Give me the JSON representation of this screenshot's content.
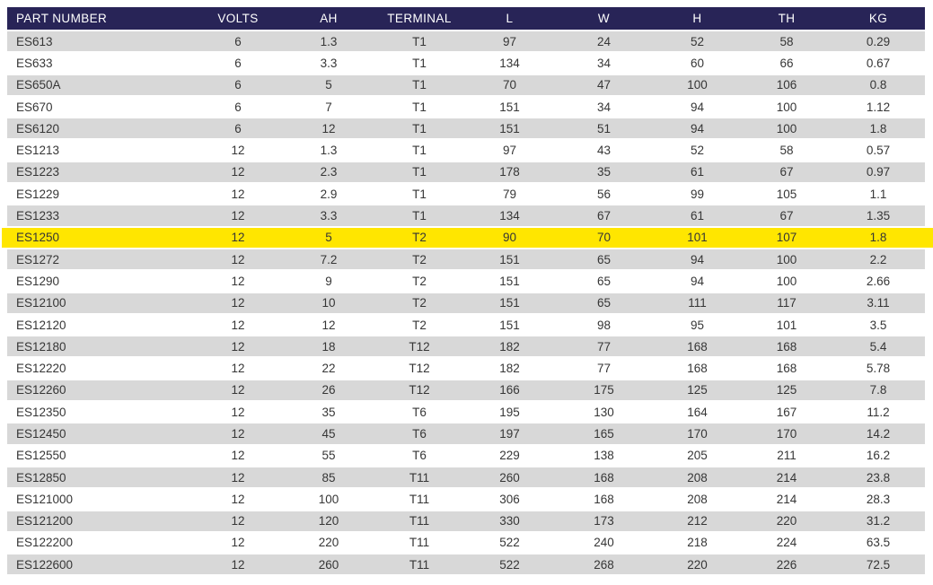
{
  "colors": {
    "header_bg": "#282457",
    "header_text": "#ffffff",
    "stripe": "#d8d8d8",
    "highlight": "#ffe600",
    "body_text": "#363636"
  },
  "table": {
    "columns": [
      "PART NUMBER",
      "VOLTS",
      "AH",
      "TERMINAL",
      "L",
      "W",
      "H",
      "TH",
      "KG"
    ],
    "column_keys": [
      "part-number",
      "volts",
      "ah",
      "terminal",
      "l",
      "w",
      "h",
      "th",
      "kg"
    ],
    "highlighted_part": "ES1250",
    "rows": [
      [
        "ES613",
        "6",
        "1.3",
        "T1",
        "97",
        "24",
        "52",
        "58",
        "0.29"
      ],
      [
        "ES633",
        "6",
        "3.3",
        "T1",
        "134",
        "34",
        "60",
        "66",
        "0.67"
      ],
      [
        "ES650A",
        "6",
        "5",
        "T1",
        "70",
        "47",
        "100",
        "106",
        "0.8"
      ],
      [
        "ES670",
        "6",
        "7",
        "T1",
        "151",
        "34",
        "94",
        "100",
        "1.12"
      ],
      [
        "ES6120",
        "6",
        "12",
        "T1",
        "151",
        "51",
        "94",
        "100",
        "1.8"
      ],
      [
        "ES1213",
        "12",
        "1.3",
        "T1",
        "97",
        "43",
        "52",
        "58",
        "0.57"
      ],
      [
        "ES1223",
        "12",
        "2.3",
        "T1",
        "178",
        "35",
        "61",
        "67",
        "0.97"
      ],
      [
        "ES1229",
        "12",
        "2.9",
        "T1",
        "79",
        "56",
        "99",
        "105",
        "1.1"
      ],
      [
        "ES1233",
        "12",
        "3.3",
        "T1",
        "134",
        "67",
        "61",
        "67",
        "1.35"
      ],
      [
        "ES1250",
        "12",
        "5",
        "T2",
        "90",
        "70",
        "101",
        "107",
        "1.8"
      ],
      [
        "ES1272",
        "12",
        "7.2",
        "T2",
        "151",
        "65",
        "94",
        "100",
        "2.2"
      ],
      [
        "ES1290",
        "12",
        "9",
        "T2",
        "151",
        "65",
        "94",
        "100",
        "2.66"
      ],
      [
        "ES12100",
        "12",
        "10",
        "T2",
        "151",
        "65",
        "111",
        "117",
        "3.11"
      ],
      [
        "ES12120",
        "12",
        "12",
        "T2",
        "151",
        "98",
        "95",
        "101",
        "3.5"
      ],
      [
        "ES12180",
        "12",
        "18",
        "T12",
        "182",
        "77",
        "168",
        "168",
        "5.4"
      ],
      [
        "ES12220",
        "12",
        "22",
        "T12",
        "182",
        "77",
        "168",
        "168",
        "5.78"
      ],
      [
        "ES12260",
        "12",
        "26",
        "T12",
        "166",
        "175",
        "125",
        "125",
        "7.8"
      ],
      [
        "ES12350",
        "12",
        "35",
        "T6",
        "195",
        "130",
        "164",
        "167",
        "11.2"
      ],
      [
        "ES12450",
        "12",
        "45",
        "T6",
        "197",
        "165",
        "170",
        "170",
        "14.2"
      ],
      [
        "ES12550",
        "12",
        "55",
        "T6",
        "229",
        "138",
        "205",
        "211",
        "16.2"
      ],
      [
        "ES12850",
        "12",
        "85",
        "T11",
        "260",
        "168",
        "208",
        "214",
        "23.8"
      ],
      [
        "ES121000",
        "12",
        "100",
        "T11",
        "306",
        "168",
        "208",
        "214",
        "28.3"
      ],
      [
        "ES121200",
        "12",
        "120",
        "T11",
        "330",
        "173",
        "212",
        "220",
        "31.2"
      ],
      [
        "ES122200",
        "12",
        "220",
        "T11",
        "522",
        "240",
        "218",
        "224",
        "63.5"
      ],
      [
        "ES122600",
        "12",
        "260",
        "T11",
        "522",
        "268",
        "220",
        "226",
        "72.5"
      ]
    ]
  }
}
